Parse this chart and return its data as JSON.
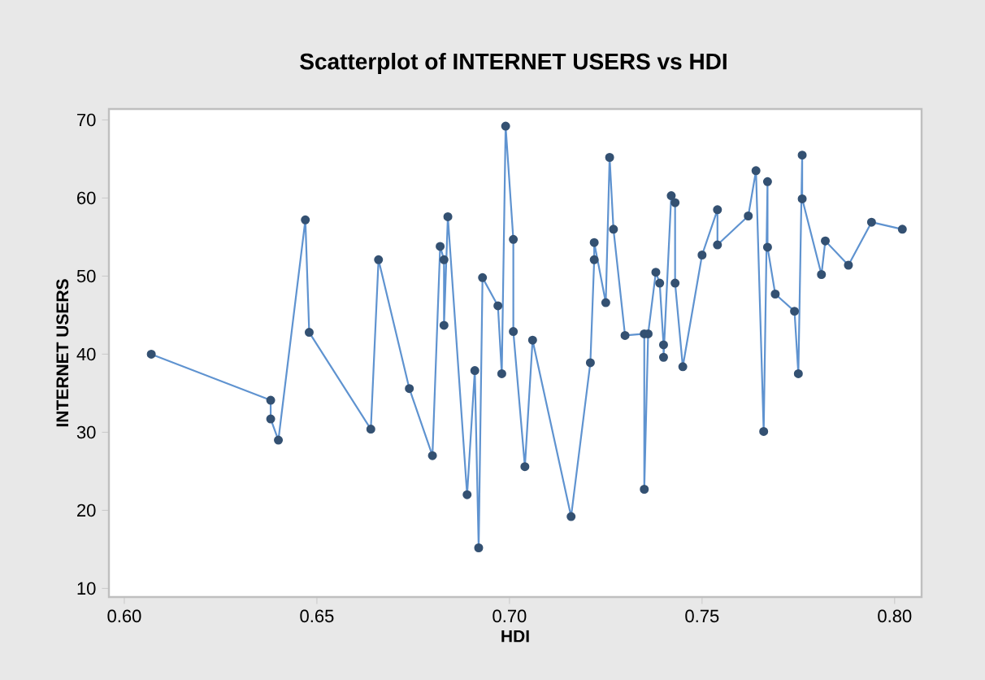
{
  "chart_data": {
    "type": "line",
    "title": "Scatterplot of INTERNET USERS vs HDI",
    "xlabel": "HDI",
    "ylabel": "INTERNET USERS",
    "marker": "circle",
    "line_style": "solid",
    "xlim": [
      0.596,
      0.807
    ],
    "ylim": [
      8.9,
      71.4
    ],
    "xticks": [
      {
        "value": 0.6,
        "label": "0.60"
      },
      {
        "value": 0.65,
        "label": "0.65"
      },
      {
        "value": 0.7,
        "label": "0.70"
      },
      {
        "value": 0.75,
        "label": "0.75"
      },
      {
        "value": 0.8,
        "label": "0.80"
      }
    ],
    "yticks": [
      10,
      20,
      30,
      40,
      50,
      60,
      70
    ],
    "series": [
      {
        "color": "#5f93d0",
        "x": [
          0.607,
          0.638,
          0.638,
          0.64,
          0.647,
          0.648,
          0.664,
          0.666,
          0.674,
          0.68,
          0.682,
          0.683,
          0.683,
          0.684,
          0.689,
          0.691,
          0.692,
          0.693,
          0.697,
          0.698,
          0.699,
          0.701,
          0.701,
          0.704,
          0.706,
          0.716,
          0.721,
          0.722,
          0.722,
          0.725,
          0.726,
          0.727,
          0.73,
          0.735,
          0.735,
          0.736,
          0.738,
          0.739,
          0.74,
          0.74,
          0.742,
          0.743,
          0.743,
          0.745,
          0.75,
          0.754,
          0.754,
          0.762,
          0.764,
          0.766,
          0.767,
          0.767,
          0.769,
          0.774,
          0.775,
          0.776,
          0.776,
          0.781,
          0.782,
          0.788,
          0.794,
          0.802
        ],
        "values": [
          40.0,
          34.1,
          31.7,
          29.0,
          57.2,
          42.8,
          30.4,
          52.1,
          35.6,
          27.0,
          53.8,
          52.1,
          43.7,
          57.6,
          22.0,
          37.9,
          15.2,
          49.8,
          46.2,
          37.5,
          69.2,
          54.7,
          42.9,
          25.6,
          41.8,
          19.2,
          38.9,
          52.1,
          54.3,
          46.6,
          65.2,
          56.0,
          42.4,
          42.6,
          22.7,
          42.6,
          50.5,
          49.1,
          41.2,
          39.6,
          60.3,
          59.4,
          49.1,
          38.4,
          52.7,
          58.5,
          54.0,
          57.7,
          63.5,
          30.1,
          62.1,
          53.7,
          47.7,
          45.5,
          37.5,
          65.5,
          59.9,
          50.2,
          54.5,
          51.4,
          56.9,
          56.0
        ]
      }
    ]
  }
}
